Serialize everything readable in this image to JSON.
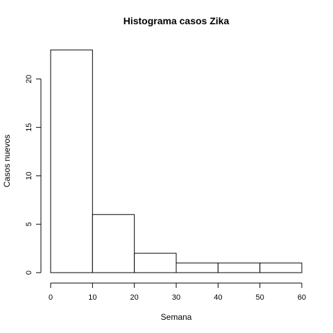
{
  "chart_data": {
    "type": "bar",
    "title": "Histograma casos Zika",
    "xlabel": "Semana",
    "ylabel": "Casos nuevos",
    "bins": [
      [
        0,
        10
      ],
      [
        10,
        20
      ],
      [
        20,
        30
      ],
      [
        30,
        40
      ],
      [
        40,
        50
      ],
      [
        50,
        60
      ]
    ],
    "values": [
      23,
      6,
      2,
      1,
      1,
      1
    ],
    "xlim": [
      0,
      60
    ],
    "ylim": [
      0,
      23
    ],
    "x_ticks": [
      "0",
      "10",
      "20",
      "30",
      "40",
      "50",
      "60"
    ],
    "y_ticks": [
      "0",
      "5",
      "10",
      "15",
      "20"
    ],
    "grid": false,
    "bar_fill": "#ffffff",
    "bar_stroke": "#000000"
  }
}
